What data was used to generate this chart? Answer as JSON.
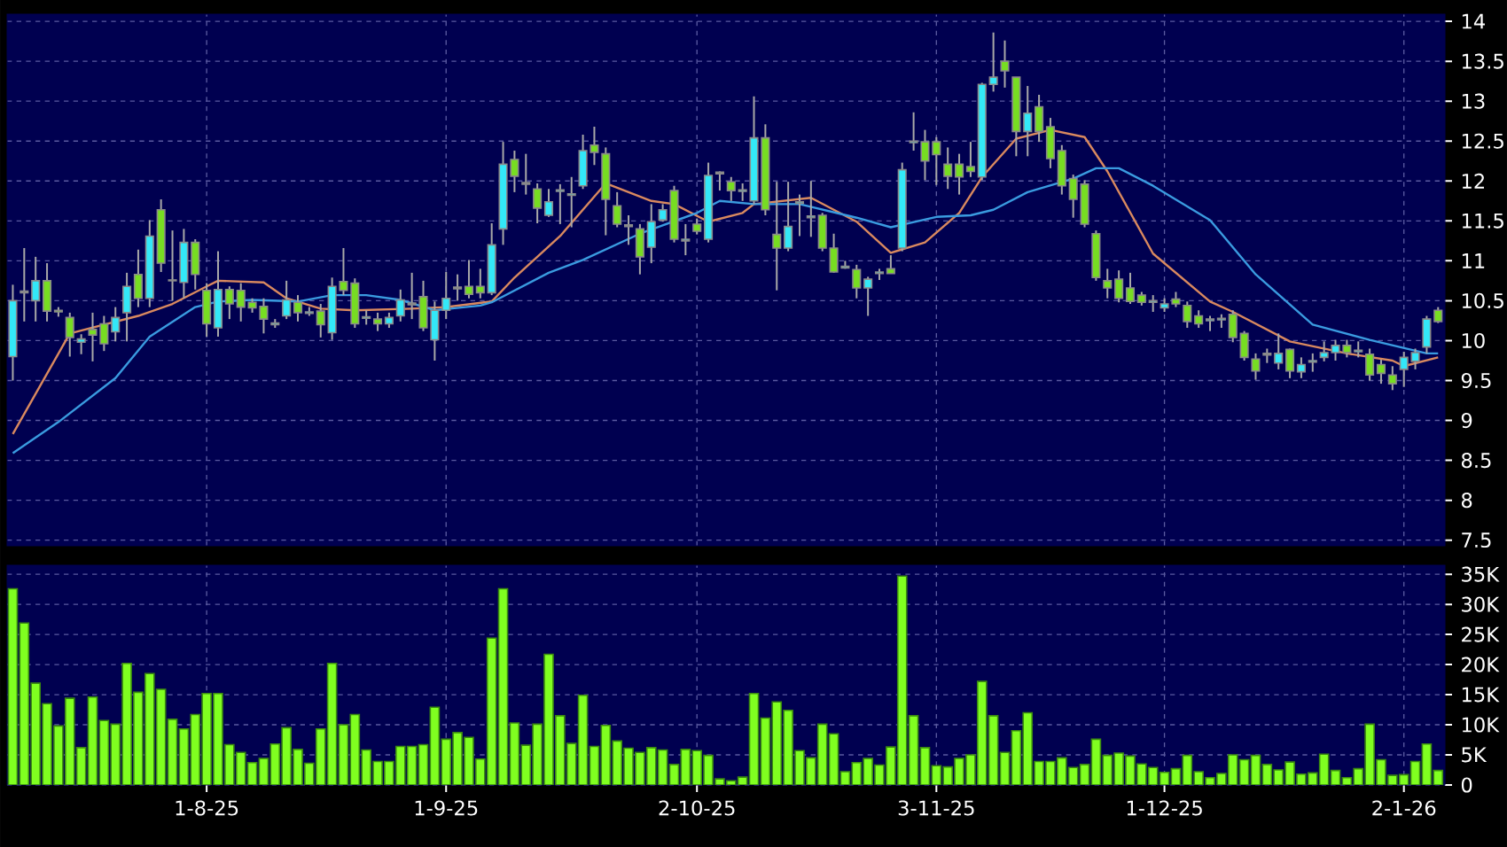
{
  "chart_data": [
    {
      "type": "candlestick",
      "categories": [
        null,
        null,
        null,
        null,
        null,
        null,
        null,
        null,
        null,
        null,
        null,
        null,
        null,
        null,
        null,
        null,
        null,
        null,
        null,
        null,
        null,
        null,
        null,
        null,
        null,
        null,
        null,
        null,
        null,
        null,
        null,
        null,
        null,
        null,
        null,
        null,
        null,
        null,
        null,
        null,
        null,
        null,
        null,
        null,
        null,
        null,
        null,
        null,
        null,
        null,
        null,
        null,
        null,
        null,
        null,
        null,
        null,
        null,
        null,
        null,
        null,
        null,
        null,
        null,
        null,
        null,
        null,
        null,
        null,
        null,
        null,
        null,
        null,
        null,
        null,
        null,
        null,
        null,
        null,
        null,
        null,
        null,
        null,
        null,
        null,
        null,
        null,
        null,
        null,
        null,
        null,
        null,
        null,
        null,
        null,
        null,
        null,
        null,
        null,
        null,
        null,
        null,
        null,
        null,
        null,
        null,
        null,
        null,
        null,
        null,
        null,
        null,
        null,
        null,
        null,
        null,
        null,
        null,
        null,
        null,
        null,
        null,
        null,
        null,
        null,
        null
      ],
      "ohlc": [
        [
          9.8,
          10.7,
          9.5,
          10.5
        ],
        [
          10.6,
          11.16,
          10.24,
          10.62
        ],
        [
          10.5,
          11.05,
          10.24,
          10.75
        ],
        [
          10.75,
          10.97,
          10.24,
          10.37
        ],
        [
          10.38,
          10.42,
          10.3,
          10.36
        ],
        [
          10.29,
          10.35,
          9.8,
          10.04
        ],
        [
          9.98,
          10.08,
          9.83,
          10.02
        ],
        [
          10.14,
          10.35,
          9.74,
          10.07
        ],
        [
          10.21,
          10.31,
          9.87,
          9.96
        ],
        [
          10.11,
          10.42,
          9.99,
          10.29
        ],
        [
          10.35,
          10.85,
          9.99,
          10.68
        ],
        [
          10.83,
          11.14,
          10.42,
          10.53
        ],
        [
          10.53,
          11.51,
          10.42,
          11.31
        ],
        [
          11.64,
          11.77,
          10.86,
          10.97
        ],
        [
          10.76,
          11.38,
          10.5,
          10.75
        ],
        [
          10.73,
          11.4,
          10.53,
          11.23
        ],
        [
          11.23,
          11.27,
          10.64,
          10.83
        ],
        [
          10.63,
          10.72,
          10.05,
          10.21
        ],
        [
          10.16,
          11.12,
          10.05,
          10.64
        ],
        [
          10.64,
          10.68,
          10.27,
          10.46
        ],
        [
          10.63,
          10.72,
          10.24,
          10.42
        ],
        [
          10.48,
          10.53,
          10.35,
          10.41
        ],
        [
          10.43,
          10.53,
          10.09,
          10.27
        ],
        [
          10.2,
          10.27,
          10.16,
          10.22
        ],
        [
          10.31,
          10.75,
          10.27,
          10.51
        ],
        [
          10.48,
          10.57,
          10.24,
          10.35
        ],
        [
          10.34,
          10.42,
          10.31,
          10.36
        ],
        [
          10.37,
          10.46,
          10.04,
          10.2
        ],
        [
          10.1,
          10.79,
          10.01,
          10.68
        ],
        [
          10.74,
          11.16,
          10.57,
          10.63
        ],
        [
          10.72,
          10.78,
          10.16,
          10.21
        ],
        [
          10.28,
          10.38,
          10.2,
          10.3
        ],
        [
          10.27,
          10.35,
          10.12,
          10.21
        ],
        [
          10.21,
          10.35,
          10.16,
          10.29
        ],
        [
          10.31,
          10.64,
          10.24,
          10.51
        ],
        [
          10.45,
          10.85,
          10.27,
          10.47
        ],
        [
          10.55,
          10.75,
          10.12,
          10.16
        ],
        [
          10.01,
          10.49,
          9.75,
          10.38
        ],
        [
          10.38,
          10.86,
          10.27,
          10.53
        ],
        [
          10.65,
          10.83,
          10.5,
          10.67
        ],
        [
          10.68,
          11.01,
          10.53,
          10.58
        ],
        [
          10.68,
          10.9,
          10.53,
          10.6
        ],
        [
          10.6,
          11.47,
          10.57,
          11.2
        ],
        [
          11.4,
          12.49,
          11.2,
          12.21
        ],
        [
          12.27,
          12.38,
          11.86,
          12.06
        ],
        [
          11.96,
          12.34,
          11.83,
          11.98
        ],
        [
          11.9,
          11.97,
          11.47,
          11.66
        ],
        [
          11.57,
          11.9,
          11.55,
          11.74
        ],
        [
          11.87,
          11.96,
          11.46,
          11.89
        ],
        [
          11.82,
          12.05,
          11.42,
          11.84
        ],
        [
          11.94,
          12.58,
          11.9,
          12.38
        ],
        [
          12.45,
          12.68,
          12.2,
          12.36
        ],
        [
          12.34,
          12.42,
          11.32,
          11.77
        ],
        [
          11.69,
          11.86,
          11.42,
          11.46
        ],
        [
          11.43,
          11.57,
          11.2,
          11.45
        ],
        [
          11.4,
          11.46,
          10.83,
          11.05
        ],
        [
          11.17,
          11.71,
          10.97,
          11.49
        ],
        [
          11.51,
          11.71,
          11.49,
          11.64
        ],
        [
          11.88,
          11.94,
          11.23,
          11.27
        ],
        [
          11.25,
          11.46,
          11.07,
          11.27
        ],
        [
          11.46,
          11.53,
          11.33,
          11.37
        ],
        [
          11.27,
          12.23,
          11.23,
          12.07
        ],
        [
          12.09,
          12.12,
          11.88,
          12.11
        ],
        [
          11.99,
          12.05,
          11.75,
          11.88
        ],
        [
          11.87,
          11.97,
          11.75,
          11.89
        ],
        [
          11.75,
          13.06,
          11.71,
          12.54
        ],
        [
          12.54,
          12.71,
          11.57,
          11.64
        ],
        [
          11.33,
          11.99,
          10.63,
          11.16
        ],
        [
          11.16,
          11.99,
          11.12,
          11.43
        ],
        [
          11.72,
          11.83,
          11.31,
          11.74
        ],
        [
          11.54,
          12.0,
          11.3,
          11.56
        ],
        [
          11.57,
          11.6,
          11.12,
          11.16
        ],
        [
          11.16,
          11.34,
          10.85,
          10.86
        ],
        [
          10.91,
          11.0,
          10.9,
          10.93
        ],
        [
          10.89,
          10.95,
          10.53,
          10.66
        ],
        [
          10.66,
          10.8,
          10.31,
          10.77
        ],
        [
          10.84,
          10.9,
          10.76,
          10.86
        ],
        [
          10.9,
          11.07,
          10.84,
          10.84
        ],
        [
          11.16,
          12.23,
          11.12,
          12.14
        ],
        [
          12.48,
          12.86,
          12.38,
          12.5
        ],
        [
          12.49,
          12.64,
          12.01,
          12.25
        ],
        [
          12.49,
          12.55,
          11.95,
          12.33
        ],
        [
          12.21,
          12.42,
          11.9,
          12.06
        ],
        [
          12.21,
          12.34,
          11.83,
          12.05
        ],
        [
          12.18,
          12.49,
          12.05,
          12.12
        ],
        [
          12.05,
          13.23,
          12.01,
          13.21
        ],
        [
          13.21,
          13.86,
          13.12,
          13.3
        ],
        [
          13.5,
          13.76,
          13.17,
          13.38
        ],
        [
          13.3,
          13.3,
          12.31,
          12.62
        ],
        [
          12.62,
          13.19,
          12.31,
          12.85
        ],
        [
          12.93,
          13.08,
          12.49,
          12.62
        ],
        [
          12.68,
          12.79,
          12.16,
          12.28
        ],
        [
          12.38,
          12.45,
          11.83,
          11.94
        ],
        [
          12.03,
          12.08,
          11.54,
          11.77
        ],
        [
          11.96,
          12.01,
          11.42,
          11.46
        ],
        [
          11.34,
          11.38,
          10.75,
          10.79
        ],
        [
          10.75,
          10.9,
          10.53,
          10.66
        ],
        [
          10.77,
          10.88,
          10.48,
          10.53
        ],
        [
          10.66,
          10.85,
          10.46,
          10.49
        ],
        [
          10.57,
          10.61,
          10.44,
          10.48
        ],
        [
          10.48,
          10.57,
          10.36,
          10.5
        ],
        [
          10.41,
          10.53,
          10.36,
          10.46
        ],
        [
          10.52,
          10.61,
          10.42,
          10.46
        ],
        [
          10.44,
          10.49,
          10.16,
          10.24
        ],
        [
          10.31,
          10.38,
          10.16,
          10.21
        ],
        [
          10.25,
          10.31,
          10.12,
          10.27
        ],
        [
          10.26,
          10.33,
          10.16,
          10.28
        ],
        [
          10.33,
          10.38,
          9.98,
          10.04
        ],
        [
          10.09,
          10.12,
          9.75,
          9.79
        ],
        [
          9.77,
          9.84,
          9.51,
          9.62
        ],
        [
          9.82,
          9.9,
          9.72,
          9.84
        ],
        [
          9.72,
          10.09,
          9.64,
          9.84
        ],
        [
          9.89,
          9.9,
          9.53,
          9.62
        ],
        [
          9.61,
          9.79,
          9.53,
          9.7
        ],
        [
          9.73,
          9.84,
          9.61,
          9.75
        ],
        [
          9.79,
          9.99,
          9.74,
          9.85
        ],
        [
          9.85,
          10.01,
          9.75,
          9.94
        ],
        [
          9.94,
          10.01,
          9.79,
          9.85
        ],
        [
          9.86,
          9.99,
          9.79,
          9.88
        ],
        [
          9.83,
          9.9,
          9.5,
          9.57
        ],
        [
          9.7,
          9.76,
          9.46,
          9.59
        ],
        [
          9.57,
          9.68,
          9.38,
          9.46
        ],
        [
          9.64,
          9.86,
          9.42,
          9.79
        ],
        [
          9.74,
          9.9,
          9.64,
          9.85
        ],
        [
          9.92,
          10.31,
          9.84,
          10.27
        ],
        [
          10.38,
          10.42,
          10.22,
          10.24
        ]
      ],
      "colors": [
        "#33e8f8",
        "#33e8f8",
        "#33e8f8",
        "#77dd22",
        "#77dd22",
        "#77dd22",
        "#33e8f8",
        "#77dd22",
        "#77dd22",
        "#33e8f8",
        "#33e8f8",
        "#77dd22",
        "#33e8f8",
        "#77dd22",
        "#77dd22",
        "#33e8f8",
        "#77dd22",
        "#77dd22",
        "#33e8f8",
        "#77dd22",
        "#77dd22",
        "#77dd22",
        "#77dd22",
        "#33e8f8",
        "#33e8f8",
        "#77dd22",
        "#33e8f8",
        "#77dd22",
        "#33e8f8",
        "#77dd22",
        "#77dd22",
        "#33e8f8",
        "#77dd22",
        "#33e8f8",
        "#33e8f8",
        "#33e8f8",
        "#77dd22",
        "#33e8f8",
        "#33e8f8",
        "#33e8f8",
        "#77dd22",
        "#77dd22",
        "#33e8f8",
        "#33e8f8",
        "#77dd22",
        "#33e8f8",
        "#77dd22",
        "#33e8f8",
        "#33e8f8",
        "#33e8f8",
        "#33e8f8",
        "#77dd22",
        "#77dd22",
        "#77dd22",
        "#33e8f8",
        "#77dd22",
        "#33e8f8",
        "#33e8f8",
        "#77dd22",
        "#33e8f8",
        "#77dd22",
        "#33e8f8",
        "#33e8f8",
        "#77dd22",
        "#33e8f8",
        "#33e8f8",
        "#77dd22",
        "#77dd22",
        "#33e8f8",
        "#33e8f8",
        "#33e8f8",
        "#77dd22",
        "#77dd22",
        "#33e8f8",
        "#77dd22",
        "#33e8f8",
        "#33e8f8",
        "#77dd22",
        "#33e8f8",
        "#33e8f8",
        "#77dd22",
        "#77dd22",
        "#77dd22",
        "#77dd22",
        "#77dd22",
        "#33e8f8",
        "#33e8f8",
        "#77dd22",
        "#77dd22",
        "#33e8f8",
        "#77dd22",
        "#77dd22",
        "#77dd22",
        "#77dd22",
        "#77dd22",
        "#77dd22",
        "#77dd22",
        "#77dd22",
        "#77dd22",
        "#77dd22",
        "#33e8f8",
        "#33e8f8",
        "#77dd22",
        "#77dd22",
        "#77dd22",
        "#33e8f8",
        "#33e8f8",
        "#77dd22",
        "#77dd22",
        "#77dd22",
        "#33e8f8",
        "#33e8f8",
        "#77dd22",
        "#33e8f8",
        "#33e8f8",
        "#33e8f8",
        "#33e8f8",
        "#77dd22",
        "#33e8f8",
        "#77dd22",
        "#77dd22",
        "#77dd22",
        "#33e8f8",
        "#33e8f8",
        "#33e8f8",
        "#77dd22"
      ],
      "series": [
        {
          "type": "line",
          "color": "#d9895f",
          "values": [
            8.83,
            null,
            null,
            null,
            null,
            10.09,
            null,
            null,
            null,
            null,
            null,
            10.31,
            null,
            null,
            10.46,
            null,
            null,
            10.68,
            10.75,
            null,
            null,
            null,
            10.73,
            null,
            10.53,
            null,
            null,
            10.4,
            null,
            null,
            10.38,
            null,
            null,
            null,
            null,
            10.4,
            null,
            null,
            10.42,
            null,
            null,
            null,
            10.49,
            null,
            10.79,
            null,
            null,
            null,
            11.31,
            null,
            null,
            null,
            11.97,
            null,
            null,
            null,
            11.75,
            null,
            11.71,
            null,
            null,
            11.49,
            null,
            null,
            11.6,
            11.71,
            null,
            null,
            null,
            null,
            11.79,
            null,
            null,
            null,
            11.49,
            null,
            null,
            11.1,
            null,
            null,
            11.23,
            null,
            null,
            11.6,
            null,
            12.05,
            null,
            null,
            12.53,
            null,
            null,
            12.64,
            null,
            null,
            12.55,
            null,
            12.12,
            null,
            null,
            null,
            11.09,
            null,
            null,
            null,
            null,
            10.49,
            null,
            10.36,
            null,
            null,
            null,
            null,
            9.99,
            null,
            null,
            null,
            null,
            9.84,
            null,
            null,
            null,
            9.75,
            9.68,
            null,
            null,
            9.79
          ]
        },
        {
          "type": "line",
          "color": "#3a9be0",
          "values": [
            8.59,
            null,
            null,
            null,
            8.98,
            null,
            null,
            null,
            null,
            9.53,
            null,
            null,
            10.05,
            null,
            null,
            null,
            10.42,
            null,
            10.49,
            null,
            null,
            10.51,
            null,
            null,
            null,
            10.49,
            null,
            null,
            10.57,
            null,
            null,
            10.57,
            null,
            null,
            10.51,
            null,
            null,
            10.38,
            null,
            null,
            null,
            10.44,
            10.48,
            null,
            null,
            null,
            null,
            10.85,
            null,
            null,
            11.01,
            null,
            null,
            null,
            null,
            11.34,
            null,
            null,
            null,
            null,
            11.6,
            null,
            11.75,
            null,
            null,
            11.71,
            null,
            null,
            null,
            11.71,
            null,
            null,
            null,
            null,
            11.54,
            null,
            null,
            11.42,
            null,
            null,
            null,
            11.55,
            null,
            null,
            11.57,
            null,
            11.64,
            null,
            null,
            11.86,
            null,
            null,
            null,
            12.03,
            null,
            12.16,
            null,
            12.16,
            null,
            null,
            11.94,
            null,
            null,
            null,
            null,
            11.51,
            null,
            null,
            null,
            10.83,
            null,
            null,
            null,
            null,
            10.2,
            null,
            null,
            null,
            null,
            10.01,
            null,
            null,
            null,
            null,
            9.84,
            9.84
          ]
        }
      ],
      "ylim": [
        7.43,
        14.09
      ],
      "yticks": [
        7.5,
        8,
        8.5,
        9,
        9.5,
        10,
        10.5,
        11,
        11.5,
        12,
        12.5,
        13,
        13.5,
        14
      ],
      "grid": true,
      "tick_labels": "y"
    },
    {
      "type": "bar",
      "categories": [
        null,
        null,
        null,
        null,
        null,
        null,
        null,
        null,
        null,
        null,
        null,
        null,
        null,
        null,
        null,
        null,
        null,
        "1-8-25",
        null,
        null,
        null,
        null,
        null,
        null,
        null,
        null,
        null,
        null,
        null,
        null,
        null,
        null,
        null,
        null,
        null,
        null,
        null,
        null,
        "1-9-25",
        null,
        null,
        null,
        null,
        null,
        null,
        null,
        null,
        null,
        null,
        null,
        null,
        null,
        null,
        null,
        null,
        null,
        null,
        null,
        null,
        null,
        "2-10-25",
        null,
        null,
        null,
        null,
        null,
        null,
        null,
        null,
        null,
        null,
        null,
        null,
        null,
        null,
        null,
        null,
        null,
        null,
        null,
        null,
        "3-11-25",
        null,
        null,
        null,
        null,
        null,
        null,
        null,
        null,
        null,
        null,
        null,
        null,
        null,
        null,
        null,
        null,
        null,
        null,
        null,
        "1-12-25",
        null,
        null,
        null,
        null,
        null,
        null,
        null,
        null,
        null,
        null,
        null,
        null,
        null,
        null,
        null,
        null,
        null,
        null,
        null,
        null,
        "2-1-26",
        null,
        null,
        null
      ],
      "values": [
        32.6,
        26.9,
        16.9,
        13.5,
        9.8,
        14.4,
        6.2,
        14.6,
        10.7,
        10.1,
        20.2,
        15.4,
        18.5,
        15.9,
        10.9,
        9.3,
        11.7,
        15.2,
        15.2,
        6.7,
        5.4,
        3.7,
        4.4,
        6.8,
        9.5,
        5.9,
        3.6,
        9.3,
        20.2,
        10,
        11.7,
        5.8,
        3.9,
        3.9,
        6.4,
        6.4,
        6.7,
        12.9,
        7.6,
        8.7,
        7.9,
        4.3,
        24.4,
        32.6,
        10.3,
        6.6,
        10.1,
        21.7,
        11.5,
        6.9,
        14.9,
        6.4,
        9.9,
        7.3,
        6.1,
        5.4,
        6.2,
        5.8,
        3.4,
        5.9,
        5.7,
        4.9,
        1.0,
        0.7,
        1.3,
        15.2,
        11.1,
        13.8,
        12.4,
        5.7,
        4.5,
        10.1,
        8.5,
        2.2,
        3.7,
        4.4,
        3.3,
        6.3,
        34.7,
        11.5,
        6.2,
        3.2,
        3.0,
        4.4,
        5.0,
        17.2,
        11.5,
        5.4,
        9.0,
        12.0,
        3.9,
        3.9,
        4.5,
        2.9,
        3.4,
        7.6,
        4.9,
        5.3,
        4.8,
        3.5,
        2.9,
        2.1,
        2.7,
        4.9,
        2.2,
        1.2,
        1.9,
        5.0,
        4.2,
        4.9,
        3.4,
        2.5,
        3.8,
        1.8,
        2.0,
        5.1,
        2.4,
        1.2,
        2.7,
        10.1,
        4.2,
        1.6,
        1.7,
        3.9,
        6.8,
        2.4
      ],
      "color": "#80ff20",
      "ylim": [
        0,
        36.5
      ],
      "yticks": [
        0,
        {
          "value": 5,
          "label": "5K"
        },
        {
          "value": 10,
          "label": "10K"
        },
        {
          "value": 15,
          "label": "15K"
        },
        {
          "value": 20,
          "label": "20K"
        },
        {
          "value": 25,
          "label": "25K"
        },
        {
          "value": 30,
          "label": "30K"
        },
        {
          "value": 35,
          "label": "35K"
        }
      ],
      "grid": true
    }
  ]
}
